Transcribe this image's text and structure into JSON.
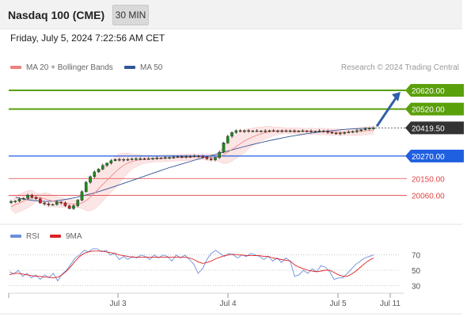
{
  "header": {
    "title": "Nasdaq 100 (CME)",
    "timeframe": "30 MIN",
    "datetime": "Friday, July 5, 2024 7:22:56 AM CET"
  },
  "legend": {
    "ma20_label": "MA 20 + Bollinger Bands",
    "ma50_label": "MA 50",
    "credit": "Research © 2024 Trading Central"
  },
  "rsi_legend": {
    "rsi_label": "RSI",
    "ma_label": "9MA"
  },
  "colors": {
    "ma20": "#f08080",
    "ma50": "#2f5597",
    "resistance": "#5aa00a",
    "support": "#1f5fe0",
    "minor_level": "#e24444",
    "current": "#333333",
    "rsi": "#6b8fdc",
    "rsi_ma": "#dd2222",
    "candle_up": "#1e8c1e",
    "candle_down": "#cc2222",
    "bollinger_fill": "#fce1e1"
  },
  "chart_data": {
    "type": "candlestick",
    "x_ticks": [
      "Jul 3",
      "Jul 4",
      "Jul 5",
      "Jul 11"
    ],
    "price_range": [
      19940,
      20700
    ],
    "levels": [
      {
        "value": 20620.0,
        "label": "20620.00",
        "kind": "resistance"
      },
      {
        "value": 20520.0,
        "label": "20520.00",
        "kind": "resistance"
      },
      {
        "value": 20419.5,
        "label": "20419.50",
        "kind": "current"
      },
      {
        "value": 20270.0,
        "label": "20270.00",
        "kind": "support"
      },
      {
        "value": 20150.0,
        "label": "20150.00",
        "kind": "minor"
      },
      {
        "value": 20060.0,
        "label": "20060.00",
        "kind": "minor"
      }
    ],
    "projection": {
      "from": 20419.5,
      "to": 20620
    },
    "close_series": [
      20028,
      20030,
      20040,
      20045,
      20062,
      20050,
      20042,
      20020,
      20015,
      20010,
      20012,
      20025,
      20020,
      20005,
      19990,
      20005,
      20035,
      20080,
      20130,
      20160,
      20185,
      20200,
      20220,
      20232,
      20245,
      20252,
      20248,
      20252,
      20250,
      20254,
      20256,
      20256,
      20254,
      20256,
      20258,
      20260,
      20258,
      20262,
      20262,
      20265,
      20267,
      20265,
      20268,
      20266,
      20270,
      20268,
      20265,
      20255,
      20250,
      20262,
      20290,
      20340,
      20375,
      20395,
      20405,
      20400,
      20405,
      20403,
      20404,
      20403,
      20404,
      20402,
      20405,
      20404,
      20403,
      20404,
      20403,
      20404,
      20403,
      20403,
      20404,
      20403,
      20402,
      20402,
      20404,
      20402,
      20396,
      20392,
      20390,
      20392,
      20395,
      20398,
      20401,
      20405,
      20410,
      20414,
      20418,
      20419.5
    ],
    "ma20_series": [
      20000,
      20010,
      20020,
      20030,
      20040,
      20048,
      20050,
      20048,
      20042,
      20035,
      20030,
      20026,
      20022,
      20020,
      20016,
      20014,
      20015,
      20020,
      20032,
      20050,
      20072,
      20095,
      20118,
      20140,
      20162,
      20184,
      20204,
      20220,
      20232,
      20240,
      20246,
      20250,
      20252,
      20254,
      20255,
      20256,
      20257,
      20258,
      20259,
      20260,
      20261,
      20262,
      20263,
      20264,
      20265,
      20265,
      20265,
      20264,
      20262,
      20262,
      20266,
      20276,
      20290,
      20305,
      20320,
      20335,
      20350,
      20362,
      20372,
      20381,
      20388,
      20394,
      20399,
      20402,
      20404,
      20405,
      20405,
      20404,
      20404,
      20403,
      20403,
      20403,
      20402,
      20402,
      20401,
      20400,
      20399,
      20398,
      20397,
      20396,
      20396,
      20397,
      20398,
      20400,
      20402,
      20404,
      20406,
      20408
    ],
    "ma50_series": [
      20050,
      20040,
      20035,
      20030,
      20028,
      20030,
      20035,
      20042,
      20050,
      20060,
      20070,
      20082,
      20095,
      20108,
      20122,
      20136,
      20150,
      20164,
      20178,
      20192,
      20206,
      20218,
      20230,
      20242,
      20254,
      20265,
      20276,
      20287,
      20298,
      20309,
      20320,
      20330,
      20340,
      20349,
      20358,
      20366,
      20374,
      20381,
      20387,
      20393,
      20398,
      20403,
      20407,
      20411,
      20414,
      20416,
      20418,
      20419
    ],
    "rsi_scale": [
      70,
      50,
      30
    ],
    "rsi_series": [
      48,
      45,
      50,
      42,
      46,
      40,
      44,
      38,
      44,
      40,
      46,
      36,
      45,
      50,
      58,
      66,
      70,
      76,
      74,
      78,
      78,
      74,
      76,
      70,
      72,
      64,
      68,
      64,
      68,
      66,
      70,
      68,
      64,
      70,
      66,
      70,
      68,
      62,
      70,
      66,
      70,
      64,
      58,
      46,
      52,
      64,
      72,
      76,
      72,
      68,
      72,
      70,
      66,
      70,
      68,
      72,
      70,
      68,
      64,
      68,
      62,
      66,
      60,
      66,
      62,
      42,
      44,
      50,
      46,
      52,
      48,
      56,
      54,
      48,
      38,
      40,
      40,
      46,
      52,
      58,
      62,
      66,
      68,
      70
    ],
    "rsi_ma_series": [
      44,
      46,
      46,
      45,
      44,
      43,
      42,
      42,
      41,
      41,
      40,
      41,
      44,
      49,
      55,
      62,
      68,
      72,
      74,
      75,
      75,
      75,
      74,
      73,
      72,
      70,
      69,
      68,
      67,
      67,
      67,
      67,
      67,
      67,
      67,
      67,
      67,
      67,
      67,
      67,
      67,
      66,
      64,
      61,
      59,
      60,
      62,
      65,
      67,
      69,
      70,
      71,
      70,
      70,
      69,
      69,
      69,
      69,
      68,
      68,
      66,
      65,
      64,
      63,
      62,
      57,
      54,
      52,
      50,
      49,
      48,
      49,
      50,
      50,
      47,
      44,
      42,
      42,
      45,
      49,
      54,
      59,
      63,
      66
    ]
  }
}
